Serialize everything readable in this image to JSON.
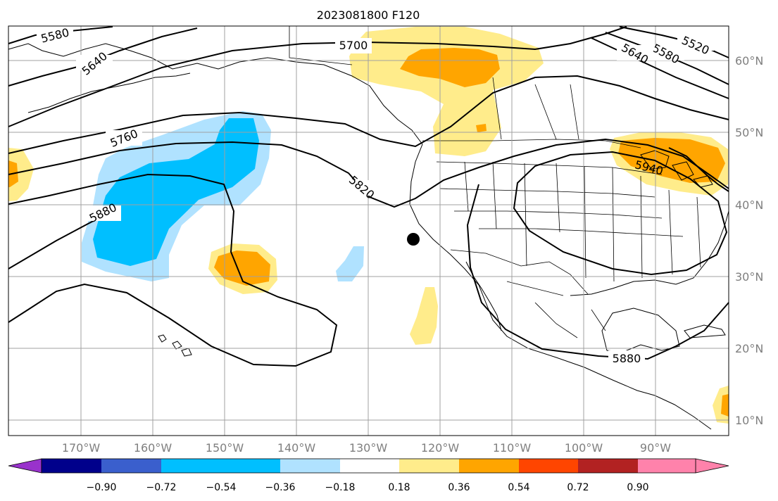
{
  "title": "2023081800 F120",
  "map": {
    "lon_labels": [
      "170°W",
      "160°W",
      "150°W",
      "140°W",
      "130°W",
      "120°W",
      "110°W",
      "100°W",
      "90°W"
    ],
    "lat_labels": [
      "60°N",
      "50°N",
      "40°N",
      "30°N",
      "20°N",
      "10°N"
    ],
    "contour_labels": [
      "5580",
      "5640",
      "5700",
      "5760",
      "5820",
      "5880",
      "5940",
      "5880",
      "5520",
      "5580",
      "5640"
    ],
    "marker": "point-marker"
  },
  "colorbar": {
    "colors": [
      "#9932CC",
      "#00008B",
      "#3A5FCD",
      "#00BFFF",
      "#B0E2FF",
      "#FFFFFF",
      "#FFEC8B",
      "#FFA500",
      "#FF4500",
      "#B22222",
      "#FF82AB"
    ],
    "tick_labels": [
      "−0.90",
      "−0.72",
      "−0.54",
      "−0.36",
      "−0.18",
      "0.18",
      "0.36",
      "0.54",
      "0.72",
      "0.90"
    ]
  }
}
